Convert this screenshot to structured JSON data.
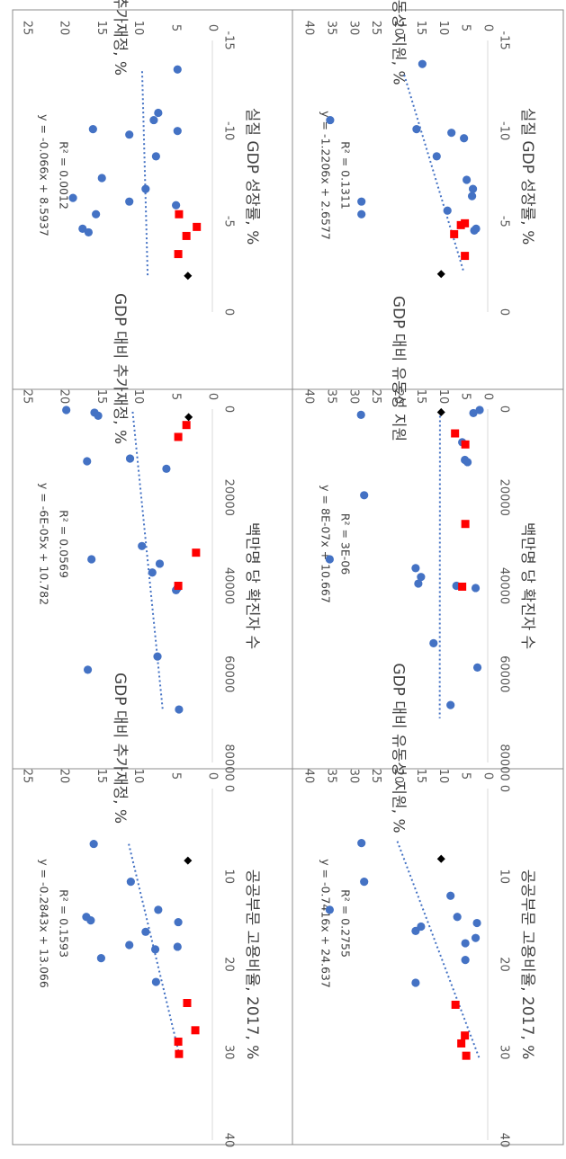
{
  "chart_data": [
    {
      "type": "scatter",
      "panel": "top-left",
      "xlabel": "공공부문 고용비율, 2017, %",
      "ylabel": "GDP 대비 추가재정, %",
      "xlim": [
        0,
        40
      ],
      "xticks": [
        "0",
        "10",
        "20",
        "30",
        "40"
      ],
      "ylim": [
        0,
        25
      ],
      "yticks": [
        "0",
        "5",
        "10",
        "15",
        "20",
        "25"
      ],
      "equation": "y = -0.2843x + 13.066",
      "r2": "R² = 0.1593",
      "trendline": {
        "slope": -0.2843,
        "intercept": 13.066,
        "x_range": [
          6.3,
          30.5
        ]
      },
      "series": [
        {
          "marker": "circle",
          "color": "#4472c4",
          "points": [
            [
              6.3,
              16.0
            ],
            [
              10.6,
              11.0
            ],
            [
              13.8,
              7.3
            ],
            [
              14.6,
              17.0
            ],
            [
              15.0,
              16.4
            ],
            [
              15.2,
              4.6
            ],
            [
              16.3,
              9.0
            ],
            [
              17.8,
              11.2
            ],
            [
              18.0,
              4.7
            ],
            [
              18.3,
              7.7
            ],
            [
              19.3,
              15.0
            ],
            [
              22.0,
              7.6
            ]
          ]
        },
        {
          "marker": "square",
          "color": "#ff0000",
          "points": [
            [
              24.4,
              3.4
            ],
            [
              27.5,
              2.3
            ],
            [
              28.8,
              4.6
            ],
            [
              30.2,
              4.5
            ]
          ]
        },
        {
          "marker": "diamond",
          "color": "#000000",
          "points": [
            [
              8.2,
              3.3
            ]
          ]
        }
      ]
    },
    {
      "type": "scatter",
      "panel": "top-middle",
      "xlabel": "백만명 당 확진자 수",
      "ylabel": "GDP 대비 추가재정, %",
      "xlim": [
        0,
        80000
      ],
      "xticks": [
        "0",
        "20000",
        "40000",
        "60000",
        "80000"
      ],
      "ylim": [
        0,
        25
      ],
      "yticks": [
        "0",
        "5",
        "10",
        "15",
        "20",
        "25"
      ],
      "equation": "y = -6E-05x + 10.782",
      "r2": "R² = 0.0569",
      "trendline": {
        "slope": -6e-05,
        "intercept": 10.782,
        "x_range": [
          600,
          68000
        ]
      },
      "series": [
        {
          "marker": "circle",
          "color": "#4472c4",
          "points": [
            [
              200,
              19.7
            ],
            [
              800,
              15.9
            ],
            [
              1500,
              15.4
            ],
            [
              11200,
              11.1
            ],
            [
              11800,
              16.9
            ],
            [
              13500,
              6.2
            ],
            [
              31000,
              9.5
            ],
            [
              34000,
              16.3
            ],
            [
              35000,
              7.1
            ],
            [
              37000,
              8.1
            ],
            [
              40500,
              4.7
            ],
            [
              41000,
              4.9
            ],
            [
              56000,
              7.4
            ],
            [
              59000,
              16.8
            ],
            [
              68000,
              4.5
            ]
          ]
        },
        {
          "marker": "square",
          "color": "#ff0000",
          "points": [
            [
              3600,
              3.5
            ],
            [
              6300,
              4.6
            ],
            [
              32500,
              2.2
            ],
            [
              40000,
              4.6
            ]
          ]
        },
        {
          "marker": "diamond",
          "color": "#000000",
          "points": [
            [
              1800,
              3.2
            ]
          ]
        }
      ]
    },
    {
      "type": "scatter",
      "panel": "top-right",
      "xlabel": "실질 GDP 성장률, %",
      "ylabel": "GDP 대비 추가재정, %",
      "xlim": [
        -15,
        0
      ],
      "xticks": [
        "-15",
        "-10",
        "-5",
        "0"
      ],
      "ylim": [
        0,
        25
      ],
      "yticks": [
        "0",
        "5",
        "10",
        "15",
        "20",
        "25"
      ],
      "equation": "y = -0.066x + 8.5937",
      "r2": "R² = 0.0012",
      "trendline": {
        "slope": -0.066,
        "intercept": 8.5937,
        "x_range": [
          -13.3,
          -2.0
        ]
      },
      "series": [
        {
          "marker": "circle",
          "color": "#4472c4",
          "points": [
            [
              -13.4,
              4.7
            ],
            [
              -11.0,
              7.3
            ],
            [
              -10.6,
              7.9
            ],
            [
              -10.1,
              16.1
            ],
            [
              -10.0,
              4.7
            ],
            [
              -9.8,
              11.2
            ],
            [
              -8.6,
              7.6
            ],
            [
              -7.4,
              14.9
            ],
            [
              -6.8,
              9.0
            ],
            [
              -6.1,
              11.2
            ],
            [
              -6.3,
              18.8
            ],
            [
              -5.9,
              4.9
            ],
            [
              -5.4,
              15.7
            ],
            [
              -4.6,
              17.5
            ],
            [
              -4.4,
              16.7
            ]
          ]
        },
        {
          "marker": "square",
          "color": "#ff0000",
          "points": [
            [
              -3.2,
              4.6
            ],
            [
              -4.2,
              3.5
            ],
            [
              -4.7,
              2.1
            ],
            [
              -5.4,
              4.5
            ]
          ]
        },
        {
          "marker": "diamond",
          "color": "#000000",
          "points": [
            [
              -2.0,
              3.3
            ]
          ]
        }
      ]
    },
    {
      "type": "scatter",
      "panel": "bottom-left",
      "xlabel": "공공부문 고용비율, 2017, %",
      "ylabel": "GDP 대비 유동성 지원, %",
      "xlim": [
        0,
        40
      ],
      "xticks": [
        "0",
        "10",
        "20",
        "30",
        "40"
      ],
      "ylim": [
        0,
        40
      ],
      "yticks": [
        "0",
        "5",
        "10",
        "15",
        "20",
        "25",
        "30",
        "35",
        "40"
      ],
      "equation": "y = -0.7416x + 24.637",
      "r2": "R² = 0.2755",
      "trendline": {
        "slope": -0.7416,
        "intercept": 24.637,
        "x_range": [
          6.0,
          30.8
        ]
      },
      "series": [
        {
          "marker": "circle",
          "color": "#4472c4",
          "points": [
            [
              6.2,
              28.2
            ],
            [
              10.6,
              27.6
            ],
            [
              12.2,
              8.3
            ],
            [
              13.8,
              35.3
            ],
            [
              14.6,
              6.8
            ],
            [
              15.3,
              2.4
            ],
            [
              15.7,
              14.9
            ],
            [
              16.2,
              16.1
            ],
            [
              17.0,
              2.7
            ],
            [
              17.6,
              5.0
            ],
            [
              19.5,
              5.0
            ],
            [
              22.1,
              16.1
            ]
          ]
        },
        {
          "marker": "square",
          "color": "#ff0000",
          "points": [
            [
              24.6,
              7.2
            ],
            [
              28.1,
              5.1
            ],
            [
              29.0,
              5.9
            ],
            [
              30.4,
              4.8
            ]
          ]
        },
        {
          "marker": "diamond",
          "color": "#000000",
          "points": [
            [
              8.0,
              10.4
            ]
          ]
        }
      ]
    },
    {
      "type": "scatter",
      "panel": "bottom-middle",
      "xlabel": "백만명 당 확진자 수",
      "ylabel": "GDP 대비 유동성 지원",
      "xlim": [
        0,
        80000
      ],
      "xticks": [
        "0",
        "20000",
        "40000",
        "60000",
        "80000"
      ],
      "ylim": [
        0,
        40
      ],
      "yticks": [
        "0",
        "5",
        "10",
        "15",
        "20",
        "25",
        "30",
        "35",
        "40"
      ],
      "equation": "y = 8E-07x + 10.667",
      "r2": "R² = 3E-06",
      "trendline": {
        "slope": 8e-07,
        "intercept": 10.667,
        "x_range": [
          500,
          70000
        ]
      },
      "series": [
        {
          "marker": "circle",
          "color": "#4472c4",
          "points": [
            [
              200,
              1.8
            ],
            [
              900,
              3.2
            ],
            [
              1300,
              28.3
            ],
            [
              7500,
              5.7
            ],
            [
              11500,
              5.1
            ],
            [
              12000,
              4.5
            ],
            [
              19500,
              27.6
            ],
            [
              34000,
              35.3
            ],
            [
              36000,
              16.1
            ],
            [
              38000,
              14.9
            ],
            [
              39500,
              15.5
            ],
            [
              40000,
              7.0
            ],
            [
              40500,
              2.7
            ],
            [
              53000,
              12.1
            ],
            [
              58500,
              2.3
            ],
            [
              67000,
              8.3
            ]
          ]
        },
        {
          "marker": "square",
          "color": "#ff0000",
          "points": [
            [
              5500,
              7.3
            ],
            [
              8000,
              5.0
            ],
            [
              26000,
              5.0
            ],
            [
              40200,
              5.7
            ]
          ]
        },
        {
          "marker": "diamond",
          "color": "#000000",
          "points": [
            [
              700,
              10.4
            ]
          ]
        }
      ]
    },
    {
      "type": "scatter",
      "panel": "bottom-right",
      "xlabel": "실질 GDP 성장률, %",
      "ylabel": "GDP 대비 유동성 지원, %",
      "xlim": [
        -15,
        0
      ],
      "xticks": [
        "-15",
        "-10",
        "-5",
        "0"
      ],
      "ylim": [
        0,
        40
      ],
      "yticks": [
        "0",
        "5",
        "10",
        "15",
        "20",
        "25",
        "30",
        "35",
        "40"
      ],
      "equation": "y = -1.2206x + 2.6577",
      "r2": "R² = 0.1311",
      "trendline": {
        "slope": -1.2206,
        "intercept": 2.6577,
        "x_range": [
          -13.1,
          -2.2
        ]
      },
      "series": [
        {
          "marker": "circle",
          "color": "#4472c4",
          "points": [
            [
              -13.7,
              14.6
            ],
            [
              -10.6,
              35.2
            ],
            [
              -10.1,
              15.9
            ],
            [
              -9.9,
              8.1
            ],
            [
              -9.6,
              5.3
            ],
            [
              -8.6,
              11.4
            ],
            [
              -7.3,
              4.7
            ],
            [
              -6.8,
              3.3
            ],
            [
              -6.4,
              3.5
            ],
            [
              -6.1,
              28.2
            ],
            [
              -5.6,
              9.0
            ],
            [
              -5.4,
              28.2
            ],
            [
              -4.6,
              2.6
            ],
            [
              -4.5,
              3.0
            ]
          ]
        },
        {
          "marker": "square",
          "color": "#ff0000",
          "points": [
            [
              -3.1,
              5.1
            ],
            [
              -4.3,
              7.5
            ],
            [
              -4.8,
              6.0
            ],
            [
              -4.9,
              5.1
            ]
          ]
        },
        {
          "marker": "diamond",
          "color": "#000000",
          "points": [
            [
              -2.1,
              10.4
            ]
          ]
        }
      ]
    }
  ]
}
